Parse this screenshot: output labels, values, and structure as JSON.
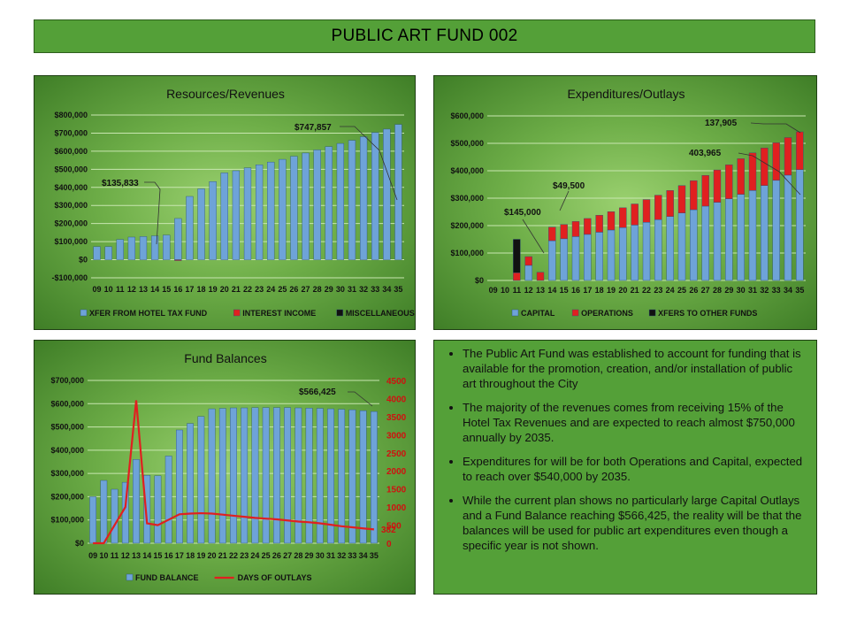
{
  "page_title": "PUBLIC ART FUND 002",
  "bullets": [
    "The Public Art Fund was established to account for funding that is available for the promotion,  creation, and/or installation of public art throughout  the City",
    "The majority of the revenues comes from receiving 15% of the Hotel Tax Revenues and are expected to reach almost $750,000 annually by 2035.",
    "Expenditures for will be for both Operations and Capital, expected to reach over $540,000 by 2035.",
    "While the current plan shows no particularly large Capital Outlays and a Fund Balance reaching $566,425, the reality will be that the balances will be used for public art expenditures even though a specific year is not shown."
  ],
  "chart_data": [
    {
      "type": "bar",
      "title": "Resources/Revenues",
      "categories": [
        "09",
        "10",
        "11",
        "12",
        "13",
        "14",
        "15",
        "16",
        "17",
        "18",
        "19",
        "20",
        "21",
        "22",
        "23",
        "24",
        "25",
        "26",
        "27",
        "28",
        "29",
        "30",
        "31",
        "32",
        "33",
        "34",
        "35"
      ],
      "ylim": [
        -100000,
        800000
      ],
      "yticks": [
        -100000,
        0,
        100000,
        200000,
        300000,
        400000,
        500000,
        600000,
        700000,
        800000
      ],
      "ytick_labels": [
        "-$100,000",
        "$0",
        "$100,000",
        "$200,000",
        "$300,000",
        "$400,000",
        "$500,000",
        "$600,000",
        "$700,000",
        "$800,000"
      ],
      "series": [
        {
          "name": "XFER FROM HOTEL TAX FUND",
          "color": "#6ea3d8",
          "values": [
            72000,
            72000,
            112000,
            125000,
            128000,
            132000,
            135833,
            228000,
            350000,
            392000,
            432000,
            480000,
            492000,
            508000,
            525000,
            540000,
            555000,
            572000,
            590000,
            607000,
            625000,
            643000,
            660000,
            680000,
            703000,
            722000,
            747857
          ]
        },
        {
          "name": "INTEREST INCOME",
          "color": "#e02020",
          "values": [
            0,
            0,
            0,
            0,
            0,
            0,
            0,
            -4000,
            0,
            0,
            0,
            0,
            0,
            0,
            0,
            0,
            0,
            0,
            0,
            0,
            0,
            0,
            0,
            0,
            0,
            0,
            0
          ]
        },
        {
          "name": "MISCELLANEOUS",
          "color": "#111111",
          "values": [
            0,
            0,
            0,
            0,
            0,
            0,
            0,
            0,
            0,
            0,
            0,
            0,
            0,
            0,
            0,
            0,
            0,
            0,
            0,
            0,
            0,
            0,
            0,
            0,
            0,
            0,
            0
          ]
        }
      ],
      "annotations": [
        {
          "text": "$135,833",
          "category": "15"
        },
        {
          "text": "$747,857",
          "category": "35"
        }
      ],
      "legend": "bottom",
      "grid": true
    },
    {
      "type": "bar",
      "stacked": true,
      "title": "Expenditures/Outlays",
      "categories": [
        "09",
        "10",
        "11",
        "12",
        "13",
        "14",
        "15",
        "16",
        "17",
        "18",
        "19",
        "20",
        "21",
        "22",
        "23",
        "24",
        "25",
        "26",
        "27",
        "28",
        "29",
        "30",
        "31",
        "32",
        "33",
        "34",
        "35"
      ],
      "ylim": [
        0,
        600000
      ],
      "yticks": [
        0,
        100000,
        200000,
        300000,
        400000,
        500000,
        600000
      ],
      "ytick_labels": [
        "$0",
        "$100,000",
        "$200,000",
        "$300,000",
        "$400,000",
        "$500,000",
        "$600,000"
      ],
      "series": [
        {
          "name": "CAPITAL",
          "color": "#6ea3d8",
          "values": [
            0,
            0,
            0,
            55000,
            0,
            145000,
            152000,
            160000,
            168000,
            176000,
            184000,
            193000,
            202000,
            212000,
            222000,
            233000,
            246000,
            258000,
            271000,
            285000,
            298000,
            314000,
            328000,
            346000,
            365000,
            384000,
            403965
          ]
        },
        {
          "name": "OPERATIONS",
          "color": "#e02020",
          "values": [
            0,
            0,
            28000,
            32000,
            30000,
            49500,
            52000,
            55000,
            58000,
            62000,
            67000,
            72000,
            77000,
            83000,
            89000,
            95000,
            100000,
            106000,
            112000,
            118000,
            124000,
            130000,
            137000,
            137000,
            137000,
            137000,
            137905
          ]
        },
        {
          "name": "XFERS TO OTHER FUNDS",
          "color": "#111111",
          "values": [
            0,
            0,
            122000,
            0,
            0,
            0,
            0,
            0,
            0,
            0,
            0,
            0,
            0,
            0,
            0,
            0,
            0,
            0,
            0,
            0,
            0,
            0,
            0,
            0,
            0,
            0,
            0
          ]
        }
      ],
      "annotations": [
        {
          "text": "$145,000",
          "category": "14"
        },
        {
          "text": "$49,500",
          "category": "14"
        },
        {
          "text": "403,965",
          "category": "35"
        },
        {
          "text": "137,905",
          "category": "35"
        }
      ],
      "legend": "bottom",
      "grid": true
    },
    {
      "type": "bar",
      "title": "Fund Balances",
      "categories": [
        "09",
        "10",
        "11",
        "12",
        "13",
        "14",
        "15",
        "16",
        "17",
        "18",
        "19",
        "20",
        "21",
        "22",
        "23",
        "24",
        "25",
        "26",
        "27",
        "28",
        "29",
        "30",
        "31",
        "32",
        "33",
        "34",
        "35"
      ],
      "ylim": [
        0,
        700000
      ],
      "yticks": [
        0,
        100000,
        200000,
        300000,
        400000,
        500000,
        600000,
        700000
      ],
      "ytick_labels": [
        "$0",
        "$100,000",
        "$200,000",
        "$300,000",
        "$400,000",
        "$500,000",
        "$600,000",
        "$700,000"
      ],
      "y2lim": [
        0,
        4500
      ],
      "y2ticks": [
        0,
        500,
        1000,
        1500,
        2000,
        2500,
        3000,
        3500,
        4000,
        4500
      ],
      "y2tick_labels": [
        "0",
        "500",
        "1000",
        "1500",
        "2000",
        "2500",
        "3000",
        "3500",
        "4000",
        "4500"
      ],
      "series": [
        {
          "name": "FUND BALANCE",
          "color": "#6ea3d8",
          "axis": "left",
          "values": [
            200000,
            270000,
            232000,
            262000,
            360000,
            292000,
            290000,
            375000,
            487000,
            515000,
            545000,
            578000,
            580000,
            582000,
            582000,
            583000,
            583000,
            583000,
            583000,
            582000,
            581000,
            580000,
            578000,
            576000,
            574000,
            570000,
            566425
          ]
        },
        {
          "name": "DAYS OF OUTLAYS",
          "color": "#e02020",
          "axis": "right",
          "type": "line",
          "values": [
            0,
            0,
            500,
            1000,
            3950,
            550,
            500,
            650,
            800,
            820,
            830,
            820,
            790,
            760,
            730,
            700,
            680,
            660,
            630,
            600,
            580,
            550,
            510,
            470,
            440,
            410,
            382
          ]
        }
      ],
      "annotations": [
        {
          "text": "$566,425",
          "category": "35"
        },
        {
          "text": "382",
          "category": "35"
        }
      ],
      "legend": "bottom",
      "grid": true
    }
  ]
}
